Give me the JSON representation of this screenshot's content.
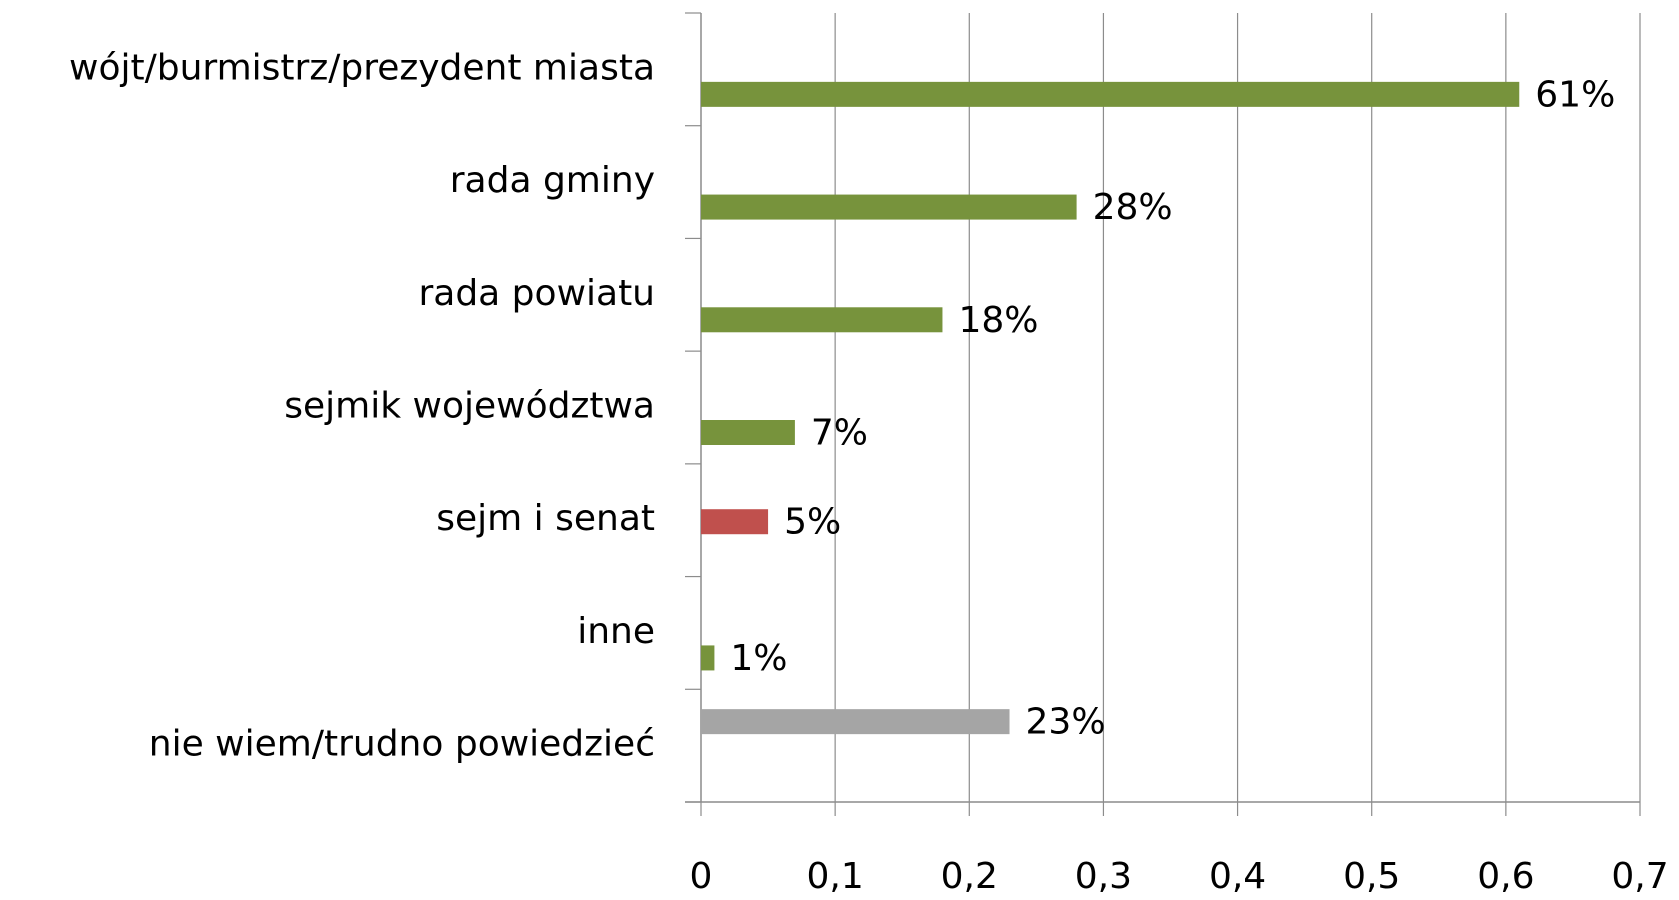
{
  "chart_data": {
    "type": "barh",
    "categories": [
      "wójt/burmistrz/prezydent miasta",
      "rada gminy",
      "rada powiatu",
      "sejmik województwa",
      "sejm i senat",
      "inne",
      "nie wiem/trudno powiedzieć"
    ],
    "series": [
      {
        "color": "#77933c",
        "values": [
          0.61,
          0.28,
          0.18,
          0.07,
          null,
          0.01,
          null
        ],
        "value_labels": [
          "61%",
          "28%",
          "18%",
          "7%",
          null,
          "1%",
          null
        ]
      },
      {
        "color": "#c0504d",
        "values": [
          null,
          null,
          null,
          null,
          0.05,
          null,
          null
        ],
        "value_labels": [
          null,
          null,
          null,
          null,
          "5%",
          null,
          null
        ]
      },
      {
        "color": "#a5a5a5",
        "values": [
          null,
          null,
          null,
          null,
          null,
          null,
          0.23
        ],
        "value_labels": [
          null,
          null,
          null,
          null,
          null,
          null,
          "23%"
        ]
      }
    ],
    "xlim": [
      0,
      0.7
    ],
    "xticks": [
      0,
      {
        "value": 0.1,
        "label": "0,1"
      },
      {
        "value": 0.2,
        "label": "0,2"
      },
      {
        "value": 0.3,
        "label": "0,3"
      },
      {
        "value": 0.4,
        "label": "0,4"
      },
      {
        "value": 0.5,
        "label": "0,5"
      },
      {
        "value": 0.6,
        "label": "0,6"
      },
      {
        "value": 0.7,
        "label": "0,7"
      }
    ],
    "grid": true
  }
}
